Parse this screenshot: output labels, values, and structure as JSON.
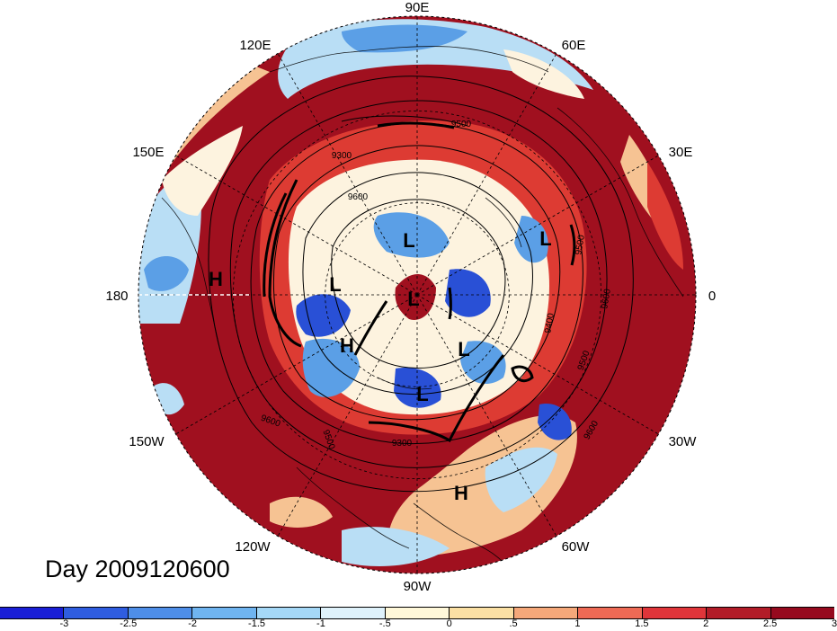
{
  "title": "Day 2009120600",
  "map": {
    "projection": "north-polar-stereographic",
    "longitude_labels": [
      {
        "text": "90E",
        "lon": 90
      },
      {
        "text": "60E",
        "lon": 60
      },
      {
        "text": "30E",
        "lon": 30
      },
      {
        "text": "0",
        "lon": 0
      },
      {
        "text": "30W",
        "lon": -30
      },
      {
        "text": "60W",
        "lon": -60
      },
      {
        "text": "90W",
        "lon": -90
      },
      {
        "text": "120W",
        "lon": -120
      },
      {
        "text": "150W",
        "lon": -150
      },
      {
        "text": "180",
        "lon": 180
      },
      {
        "text": "150E",
        "lon": 150
      },
      {
        "text": "120E",
        "lon": 120
      }
    ],
    "systems": [
      {
        "label": "H",
        "where": "north-pacific"
      },
      {
        "label": "L",
        "where": "eastern-siberia"
      },
      {
        "label": "L",
        "where": "bering-sea"
      },
      {
        "label": "L",
        "where": "central-arctic"
      },
      {
        "label": "H",
        "where": "alaska"
      },
      {
        "label": "L",
        "where": "hudson-bay"
      },
      {
        "label": "L",
        "where": "canadian-archipelago"
      },
      {
        "label": "H",
        "where": "western-atlantic"
      },
      {
        "label": "L",
        "where": "barents-sea"
      }
    ],
    "contour_labels": [
      "9500",
      "9300",
      "9600",
      "9500",
      "9400",
      "9500",
      "9600",
      "9600",
      "9600",
      "9500",
      "9300"
    ]
  },
  "colorbar": {
    "colors": [
      "#1a1fd6",
      "#2f5de0",
      "#4e8ee8",
      "#6fb4f0",
      "#a5d8f7",
      "#dff2fb",
      "#fff8d9",
      "#fbe0a4",
      "#f5a87a",
      "#ee6a55",
      "#e0353a",
      "#b21c28",
      "#960a1e"
    ],
    "tick_labels": [
      "-3",
      "-2.5",
      "-2",
      "-1.5",
      "-1",
      "-.5",
      "0",
      ".5",
      "1",
      "1.5",
      "2",
      "2.5",
      "3"
    ]
  },
  "palette": {
    "warm_dark": "#a0101f",
    "warm_mid": "#dd3b33",
    "warm_light": "#f6c393",
    "neutral": "#fdf3df",
    "cool_light": "#b9def5",
    "cool_mid": "#5b9fe6",
    "cool_dark": "#2950d6"
  }
}
